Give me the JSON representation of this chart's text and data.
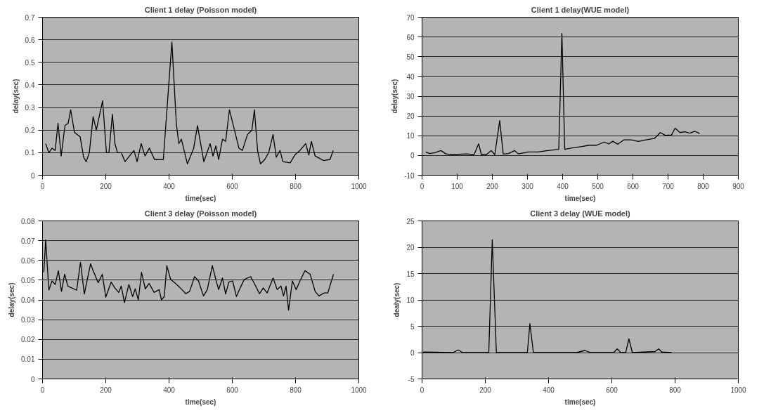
{
  "chart_data": [
    {
      "type": "line",
      "title": "Client 1 delay (Poisson model)",
      "xlabel": "time(sec)",
      "ylabel": "delay(sec)",
      "color": "#000000",
      "grid": "y",
      "xlim": [
        0,
        1000
      ],
      "ylim": [
        0,
        0.7
      ],
      "xticks": [
        0,
        200,
        400,
        600,
        800,
        1000
      ],
      "yticks": [
        0,
        0.1,
        0.2,
        0.3,
        0.4,
        0.5,
        0.6,
        0.7
      ],
      "x": [
        10,
        20,
        30,
        40,
        49,
        59,
        71,
        81,
        89,
        101,
        119,
        130,
        138,
        148,
        160,
        170,
        190,
        202,
        210,
        221,
        229,
        237,
        249,
        261,
        289,
        299,
        312,
        324,
        338,
        354,
        382,
        409,
        423,
        431,
        439,
        458,
        478,
        490,
        510,
        530,
        539,
        548,
        557,
        569,
        579,
        591,
        621,
        632,
        648,
        662,
        670,
        680,
        689,
        703,
        715,
        729,
        739,
        751,
        760,
        783,
        798,
        814,
        832,
        842,
        850,
        862,
        889,
        909,
        919
      ],
      "values": [
        0.14,
        0.1,
        0.12,
        0.11,
        0.23,
        0.085,
        0.22,
        0.23,
        0.29,
        0.19,
        0.17,
        0.08,
        0.06,
        0.1,
        0.26,
        0.2,
        0.33,
        0.1,
        0.1,
        0.27,
        0.14,
        0.1,
        0.1,
        0.06,
        0.11,
        0.06,
        0.14,
        0.085,
        0.12,
        0.07,
        0.07,
        0.59,
        0.23,
        0.14,
        0.16,
        0.05,
        0.12,
        0.22,
        0.06,
        0.14,
        0.085,
        0.13,
        0.07,
        0.16,
        0.15,
        0.29,
        0.12,
        0.11,
        0.18,
        0.2,
        0.29,
        0.11,
        0.05,
        0.07,
        0.1,
        0.18,
        0.08,
        0.11,
        0.06,
        0.055,
        0.09,
        0.11,
        0.14,
        0.09,
        0.15,
        0.085,
        0.065,
        0.07,
        0.11
      ]
    },
    {
      "type": "line",
      "title": "Client 1 delay(WUE model)",
      "xlabel": "time(sec)",
      "ylabel": "delay(sec)",
      "color": "#000000",
      "grid": "y",
      "xlim": [
        0,
        900
      ],
      "ylim": [
        -10,
        70
      ],
      "xticks": [
        0,
        100,
        200,
        300,
        400,
        500,
        600,
        700,
        800,
        900
      ],
      "yticks": [
        -10,
        0,
        10,
        20,
        30,
        40,
        50,
        60,
        70
      ],
      "x": [
        10,
        22,
        36,
        54,
        68,
        85,
        127,
        148,
        161,
        169,
        183,
        197,
        207,
        221,
        231,
        246,
        263,
        274,
        302,
        330,
        358,
        389,
        398,
        406,
        427,
        455,
        476,
        497,
        518,
        532,
        543,
        557,
        574,
        595,
        616,
        637,
        661,
        678,
        692,
        710,
        720,
        734,
        748,
        762,
        776,
        790
      ],
      "values": [
        1.8,
        1,
        1.4,
        2.5,
        0.8,
        0.4,
        0.8,
        0.4,
        5.9,
        0.4,
        0.4,
        2.5,
        0.4,
        17.7,
        0.7,
        1,
        2.5,
        0.8,
        1.8,
        1.8,
        2.5,
        3.1,
        61.8,
        3.1,
        3.8,
        4.5,
        5.2,
        5.2,
        6.8,
        5.9,
        7.2,
        5.7,
        7.9,
        7.9,
        7.1,
        7.9,
        8.6,
        11.6,
        10.2,
        10.4,
        13.8,
        11.6,
        12,
        11.3,
        12.3,
        11.1
      ]
    },
    {
      "type": "line",
      "title": "Client 3 delay (Poisson model)",
      "xlabel": "time(sec)",
      "ylabel": "delay(sec)",
      "color": "#000000",
      "grid": "y",
      "xlim": [
        0,
        1000
      ],
      "ylim": [
        0,
        0.08
      ],
      "xticks": [
        0,
        200,
        400,
        600,
        800,
        1000
      ],
      "yticks": [
        0,
        0.01,
        0.02,
        0.03,
        0.04,
        0.05,
        0.06,
        0.07,
        0.08
      ],
      "x": [
        4,
        10,
        20,
        30,
        40,
        50,
        60,
        70,
        80,
        108,
        120,
        132,
        152,
        160,
        176,
        189,
        200,
        217,
        229,
        241,
        249,
        259,
        273,
        285,
        293,
        303,
        313,
        325,
        337,
        353,
        369,
        376,
        385,
        393,
        405,
        421,
        441,
        453,
        465,
        481,
        493,
        509,
        521,
        537,
        549,
        557,
        569,
        579,
        589,
        601,
        613,
        625,
        638,
        658,
        674,
        686,
        698,
        710,
        729,
        742,
        754,
        762,
        770,
        778,
        790,
        802,
        814,
        830,
        846,
        862,
        874,
        890,
        902,
        920
      ],
      "values": [
        0.054,
        0.0704,
        0.045,
        0.0496,
        0.0478,
        0.0548,
        0.0443,
        0.053,
        0.047,
        0.0449,
        0.0591,
        0.043,
        0.0583,
        0.0548,
        0.0487,
        0.053,
        0.0414,
        0.049,
        0.046,
        0.0438,
        0.047,
        0.0386,
        0.0478,
        0.0417,
        0.0456,
        0.04,
        0.0539,
        0.0456,
        0.0483,
        0.0438,
        0.0452,
        0.04,
        0.0417,
        0.0574,
        0.0504,
        0.0483,
        0.0452,
        0.0431,
        0.0443,
        0.0518,
        0.0496,
        0.042,
        0.0452,
        0.0574,
        0.0496,
        0.0452,
        0.0511,
        0.043,
        0.049,
        0.0496,
        0.0417,
        0.0461,
        0.0504,
        0.0518,
        0.047,
        0.0431,
        0.0461,
        0.0435,
        0.0511,
        0.0452,
        0.047,
        0.042,
        0.047,
        0.0348,
        0.0496,
        0.0452,
        0.0496,
        0.0548,
        0.053,
        0.0443,
        0.042,
        0.0435,
        0.0435,
        0.053
      ]
    },
    {
      "type": "line",
      "title": "Client 3 delay (WUE model)",
      "xlabel": "time(sec)",
      "ylabel": "dealy(sec)",
      "color": "#000000",
      "grid": "y",
      "xlim": [
        0,
        1000
      ],
      "ylim": [
        -5,
        25
      ],
      "xticks": [
        0,
        200,
        400,
        600,
        800,
        1000
      ],
      "yticks": [
        -5,
        0,
        5,
        10,
        15,
        20,
        25
      ],
      "x": [
        3,
        98,
        114,
        129,
        211,
        222,
        235,
        333,
        341,
        352,
        489,
        515,
        533,
        606,
        617,
        628,
        644,
        654,
        665,
        737,
        748,
        758,
        789
      ],
      "values": [
        0.1,
        0,
        0.5,
        0,
        0,
        21.4,
        0,
        0,
        5.5,
        0,
        0,
        0.4,
        0,
        0,
        0.7,
        0,
        0,
        2.6,
        0,
        0.2,
        0.7,
        0.1,
        0
      ]
    }
  ]
}
